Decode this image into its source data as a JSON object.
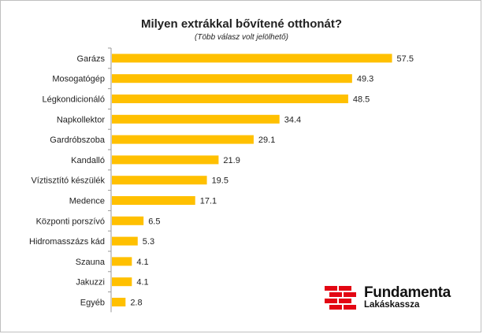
{
  "chart_data": {
    "type": "bar",
    "orientation": "horizontal",
    "title": "Milyen extrákkal bővítené otthonát?",
    "subtitle": "(Több válasz volt jelölhető)",
    "categories": [
      "Garázs",
      "Mosogatógép",
      "Légkondicionáló",
      "Napkollektor",
      "Gardróbszoba",
      "Kandalló",
      "Víztisztító készülék",
      "Medence",
      "Központi porszívó",
      "Hidromasszázs kád",
      "Szauna",
      "Jakuzzi",
      "Egyéb"
    ],
    "values": [
      57.5,
      49.3,
      48.5,
      34.4,
      29.1,
      21.9,
      19.5,
      17.1,
      6.5,
      5.3,
      4.1,
      4.1,
      2.8
    ],
    "value_labels": [
      "57.5",
      "49.3",
      "48.5",
      "34.4",
      "29.1",
      "21.9",
      "19.5",
      "17.1",
      "6.5",
      "5.3",
      "4.1",
      "4.1",
      "2.8"
    ],
    "xlim": [
      0,
      60
    ],
    "bar_color": "#FFC000",
    "grid": false
  },
  "logo": {
    "name": "Fundamenta",
    "subname": "Lakáskassza",
    "mark_color": "#E30613"
  }
}
